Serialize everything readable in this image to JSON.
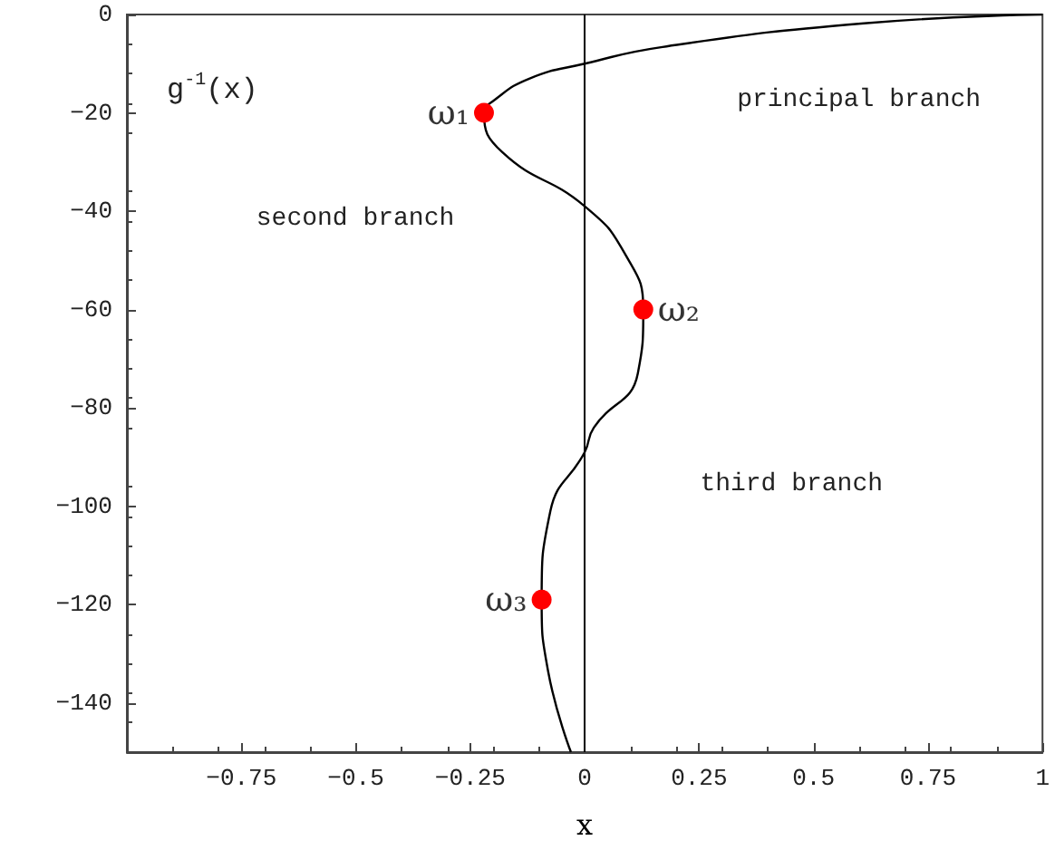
{
  "chart_data": {
    "type": "line",
    "xlabel": "x",
    "ylabel": "g$^{-1}$(x)",
    "xlim": [
      -1,
      1
    ],
    "ylim": [
      -150,
      0
    ],
    "xticks": [
      -0.75,
      -0.5,
      -0.25,
      0,
      0.25,
      0.5,
      0.75,
      1
    ],
    "yticks": [
      -140,
      -120,
      -100,
      -80,
      -60,
      -40,
      -20,
      0
    ],
    "grid": false,
    "ref_lines": [
      {
        "axis": "x",
        "value": 0,
        "color": "#000000"
      }
    ],
    "series": [
      {
        "type": "line",
        "color": "#000000",
        "marker": "none",
        "x": [
          1,
          0.61,
          0.17,
          0,
          -0.12,
          -0.2,
          -0.22,
          -0.18,
          0,
          0.09,
          0.128,
          0.116,
          0.02,
          0,
          -0.075,
          -0.094,
          -0.08,
          -0.03
        ],
        "values": [
          0,
          -1.8,
          -6.6,
          -10,
          -13,
          -17.6,
          -20,
          -28,
          -39,
          -49,
          -60,
          -73,
          -84,
          -89,
          -101,
          -119,
          -133.5,
          -150
        ]
      },
      {
        "type": "scatter",
        "color": "#ff0000",
        "marker": "circle",
        "x": [
          -0.22,
          0.128,
          -0.094
        ],
        "values": [
          -20,
          -60,
          -119
        ]
      }
    ],
    "annotations": [
      {
        "text": "ω₁",
        "x": -0.22,
        "y": -20
      },
      {
        "text": "ω₂",
        "x": 0.128,
        "y": -60
      },
      {
        "text": "ω₃",
        "x": -0.094,
        "y": -119
      },
      "principal branch",
      "second branch",
      "third branch"
    ]
  }
}
